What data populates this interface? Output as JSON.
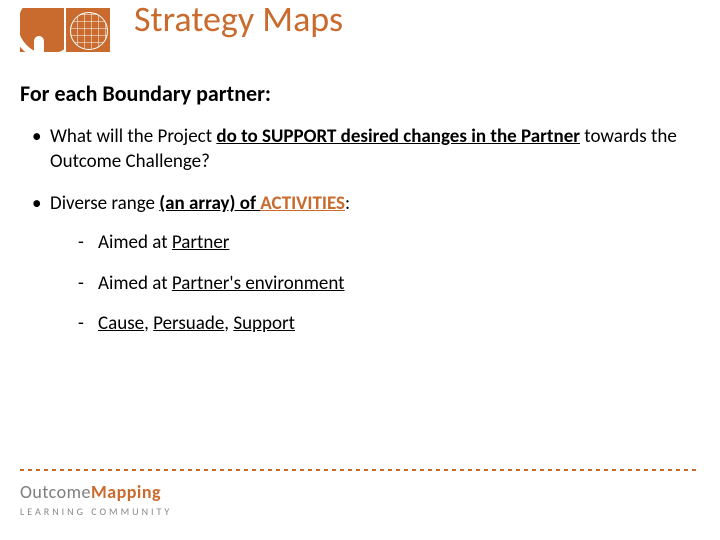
{
  "colors": {
    "accent": "#c96b2e",
    "text": "#000000",
    "muted": "#7d7d7d",
    "dot": "#c96b2e",
    "background": "#ffffff"
  },
  "title": "Strategy Maps",
  "subhead": "For each Boundary partner:",
  "bullets": {
    "b1": {
      "pre": "What will the Project ",
      "u1": "do to SUPPORT desired changes in the Partner",
      "post": " towards the Outcome Challenge?"
    },
    "b2": {
      "pre": "Diverse range ",
      "u1": "(an array) of ",
      "act": "ACTIVITIES",
      "colon": ":"
    }
  },
  "sub": {
    "s1": {
      "pre": "Aimed at ",
      "u": "Partner"
    },
    "s2": {
      "pre": "Aimed at ",
      "u": "Partner's environment"
    },
    "s3": {
      "a": "Cause",
      "sep1": ", ",
      "b": "Persuade",
      "sep2": ", ",
      "c": "Support"
    }
  },
  "footer": {
    "brand_left": "Outcome",
    "brand_right": "Mapping",
    "lc": "LEARNING  COMMUNITY"
  }
}
